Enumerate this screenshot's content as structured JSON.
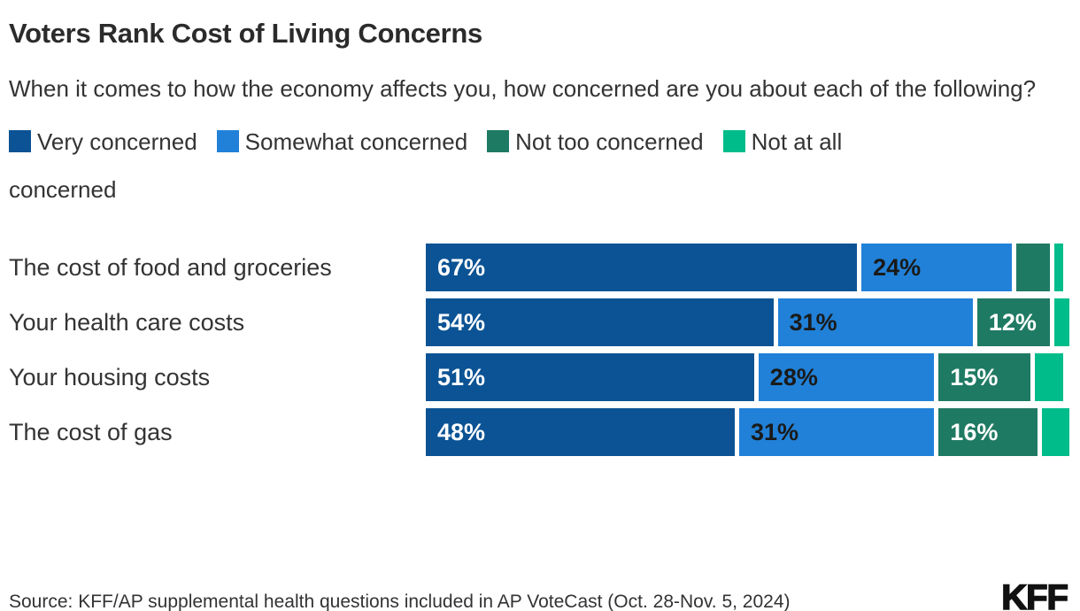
{
  "title": "Voters Rank Cost of Living Concerns",
  "subtitle": "When it comes to how the economy affects you, how concerned are you about each of the following?",
  "legend": [
    {
      "label": "Very concerned",
      "color": "#0B5394"
    },
    {
      "label": "Somewhat concerned",
      "color": "#2181D8"
    },
    {
      "label": "Not too concerned",
      "color": "#1F7A63"
    },
    {
      "label": "Not at all concerned",
      "color": "#00BC8A",
      "wrap_after": "Not at all"
    }
  ],
  "chart_data": {
    "type": "bar",
    "orientation": "horizontal-stacked",
    "unit": "%",
    "title": "Voters Rank Cost of Living Concerns",
    "categories": [
      "The cost of food and groceries",
      "Your health care costs",
      "Your housing costs",
      "The cost of gas"
    ],
    "series": [
      {
        "name": "Very concerned",
        "color": "#0B5394",
        "label_color": "#FFFFFF",
        "values": [
          67,
          54,
          51,
          48
        ]
      },
      {
        "name": "Somewhat concerned",
        "color": "#2181D8",
        "label_color": "#1A1A1A",
        "values": [
          24,
          31,
          28,
          31
        ]
      },
      {
        "name": "Not too concerned",
        "color": "#1F7A63",
        "label_color": "#FFFFFF",
        "values": [
          6,
          12,
          15,
          16
        ]
      },
      {
        "name": "Not at all concerned",
        "color": "#00BC8A",
        "label_color": "#FFFFFF",
        "values": [
          2,
          3,
          5,
          5
        ]
      }
    ],
    "xlim": [
      0,
      100
    ],
    "value_label_min_pct": 10,
    "grid": false,
    "legend_position": "top"
  },
  "source": "Source: KFF/AP supplemental health questions included in AP VoteCast (Oct. 28-Nov. 5, 2024)",
  "logo": "KFF"
}
